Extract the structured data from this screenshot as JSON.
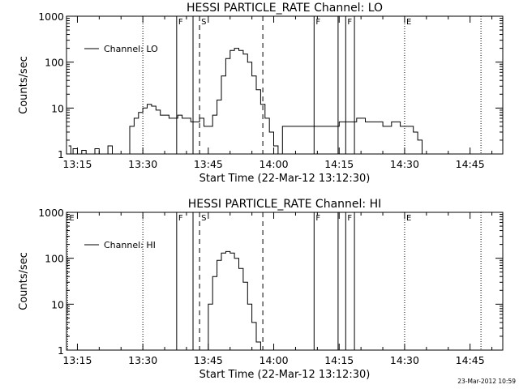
{
  "timestamp": "23-Mar-2012 10:59",
  "chart_data": [
    {
      "type": "line",
      "title": "HESSI PARTICLE_RATE Channel: LO",
      "xlabel": "Start Time (22-Mar-12 13:12:30)",
      "ylabel": "Counts/sec",
      "y_scale": "log",
      "ylim": [
        1,
        1000
      ],
      "xlim": [
        "13:12:30",
        "14:52:30"
      ],
      "x_tick_labels": [
        "13:15",
        "13:30",
        "13:45",
        "14:00",
        "14:15",
        "14:30",
        "14:45"
      ],
      "y_tick_labels": [
        "1",
        "10",
        "100",
        "1000"
      ],
      "legend": "top-left",
      "series": [
        {
          "name": "Channel: LO",
          "x": [
            "13:13:00",
            "13:13:30",
            "13:14:00",
            "13:15:00",
            "13:16:00",
            "13:17:00",
            "13:18:00",
            "13:19:00",
            "13:20:00",
            "13:21:00",
            "13:22:00",
            "13:23:00",
            "13:24:00",
            "13:25:00",
            "13:26:00",
            "13:27:00",
            "13:28:00",
            "13:29:00",
            "13:30:00",
            "13:31:00",
            "13:32:00",
            "13:33:00",
            "13:34:00",
            "13:35:00",
            "13:36:00",
            "13:37:00",
            "13:38:00",
            "13:39:00",
            "13:40:00",
            "13:41:00",
            "13:42:00",
            "13:43:00",
            "13:44:00",
            "13:45:00",
            "13:46:00",
            "13:47:00",
            "13:48:00",
            "13:49:00",
            "13:50:00",
            "13:51:00",
            "13:52:00",
            "13:53:00",
            "13:54:00",
            "13:55:00",
            "13:56:00",
            "13:57:00",
            "13:58:00",
            "13:59:00",
            "14:00:00",
            "14:01:00",
            "14:02:00",
            "14:03:00",
            "14:05:00",
            "14:07:00",
            "14:09:00",
            "14:11:00",
            "14:13:00",
            "14:15:00",
            "14:17:00",
            "14:19:00",
            "14:21:00",
            "14:23:00",
            "14:25:00",
            "14:27:00",
            "14:29:00",
            "14:31:00",
            "14:32:00",
            "14:33:00",
            "14:34:00"
          ],
          "y": [
            1.5,
            1,
            1.3,
            1,
            1.2,
            1,
            1,
            1.3,
            1,
            1,
            1.5,
            1,
            1,
            1,
            1,
            4,
            6,
            8,
            10,
            12,
            11,
            9,
            7,
            7,
            6,
            6,
            7,
            6,
            6,
            5,
            5,
            6,
            4,
            4,
            7,
            15,
            50,
            120,
            180,
            200,
            180,
            150,
            100,
            50,
            25,
            12,
            6,
            3,
            1.5,
            1,
            4,
            4,
            4,
            4,
            4,
            4,
            4,
            5,
            5,
            6,
            5,
            5,
            4,
            5,
            4,
            4,
            3,
            2,
            1
          ]
        }
      ],
      "annotations": [
        {
          "type": "dotted",
          "x": "13:30:00"
        },
        {
          "type": "solid",
          "x": "13:37:45",
          "label": "F"
        },
        {
          "type": "solid",
          "x": "13:41:30"
        },
        {
          "type": "dashed",
          "x": "13:43:00",
          "label": "S"
        },
        {
          "type": "dashed",
          "x": "13:57:30"
        },
        {
          "type": "solid",
          "x": "14:09:15",
          "label": "F"
        },
        {
          "type": "solid",
          "x": "14:14:45"
        },
        {
          "type": "solid",
          "x": "14:16:30",
          "label": "F"
        },
        {
          "type": "solid",
          "x": "14:18:30"
        },
        {
          "type": "dotted",
          "x": "14:30:00",
          "label": "E"
        },
        {
          "type": "dotted",
          "x": "14:47:30"
        }
      ]
    },
    {
      "type": "line",
      "title": "HESSI PARTICLE_RATE Channel: HI",
      "xlabel": "Start Time (22-Mar-12 13:12:30)",
      "ylabel": "Counts/sec",
      "y_scale": "log",
      "ylim": [
        1,
        1000
      ],
      "xlim": [
        "13:12:30",
        "14:52:30"
      ],
      "x_tick_labels": [
        "13:15",
        "13:30",
        "13:45",
        "14:00",
        "14:15",
        "14:30",
        "14:45"
      ],
      "y_tick_labels": [
        "1",
        "10",
        "100",
        "1000"
      ],
      "legend": "top-left",
      "series": [
        {
          "name": "Channel: HI",
          "x": [
            "13:44:00",
            "13:45:00",
            "13:46:00",
            "13:47:00",
            "13:48:00",
            "13:49:00",
            "13:50:00",
            "13:51:00",
            "13:52:00",
            "13:53:00",
            "13:54:00",
            "13:55:00",
            "13:56:00",
            "13:57:00"
          ],
          "y": [
            1,
            10,
            40,
            90,
            130,
            140,
            130,
            100,
            60,
            30,
            10,
            4,
            1.5,
            1
          ]
        }
      ],
      "annotations": [
        {
          "type": "dotted",
          "x": "13:12:45",
          "label": "E"
        },
        {
          "type": "dotted",
          "x": "13:30:00"
        },
        {
          "type": "solid",
          "x": "13:37:45",
          "label": "F"
        },
        {
          "type": "solid",
          "x": "13:41:30"
        },
        {
          "type": "dashed",
          "x": "13:43:00",
          "label": "S"
        },
        {
          "type": "dashed",
          "x": "13:57:30"
        },
        {
          "type": "solid",
          "x": "14:09:15",
          "label": "F"
        },
        {
          "type": "solid",
          "x": "14:14:45"
        },
        {
          "type": "solid",
          "x": "14:16:30",
          "label": "F"
        },
        {
          "type": "solid",
          "x": "14:18:30"
        },
        {
          "type": "dotted",
          "x": "14:30:00",
          "label": "E"
        },
        {
          "type": "dotted",
          "x": "14:47:30"
        }
      ]
    }
  ]
}
